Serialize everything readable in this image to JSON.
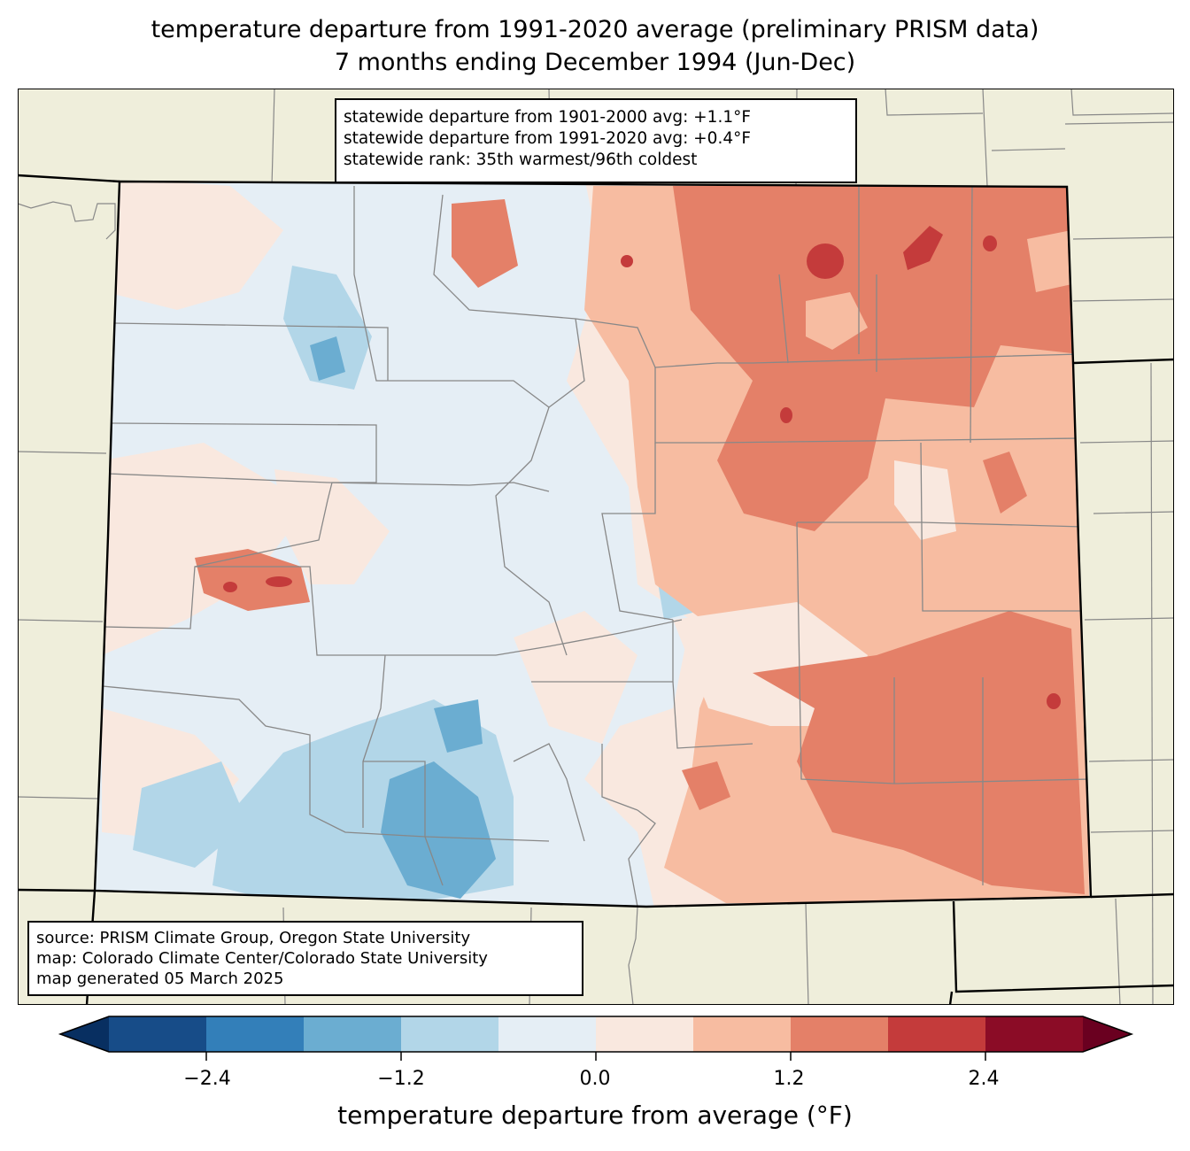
{
  "title": {
    "line1": "temperature departure from 1991-2020 average (preliminary PRISM data)",
    "line2": "7 months ending December 1994 (Jun-Dec)"
  },
  "stats_box": {
    "lines": [
      "statewide departure from 1901-2000 avg: +1.1°F",
      "statewide departure from 1991-2020 avg: +0.4°F",
      "statewide rank: 35th warmest/96th coldest"
    ]
  },
  "credits_box": {
    "lines": [
      "source: PRISM Climate Group, Oregon State University",
      "map: Colorado Climate Center/Colorado State University",
      "map generated 05 March 2025"
    ]
  },
  "colorbar": {
    "label": "temperature departure from average (°F)",
    "ticks": [
      "−2.4",
      "−1.2",
      "0.0",
      "1.2",
      "2.4"
    ],
    "tick_values": [
      -2.4,
      -1.2,
      0.0,
      1.2,
      2.4
    ],
    "range": [
      -3.0,
      3.0
    ],
    "boundaries": [
      -3.0,
      -2.4,
      -1.8,
      -1.2,
      -0.6,
      0.0,
      0.6,
      1.2,
      1.8,
      2.4,
      3.0
    ],
    "under_color": "#082f61",
    "over_color": "#6a0020",
    "colors": [
      "#174c88",
      "#337fb9",
      "#6badd1",
      "#b2d6e8",
      "#e5eef5",
      "#f9e8df",
      "#f7bca1",
      "#e48068",
      "#c43b3b",
      "#8b0c26"
    ]
  },
  "map_colors": {
    "land_outside": "#efeedb",
    "state_border": "#000000",
    "county_border": "#888888"
  }
}
